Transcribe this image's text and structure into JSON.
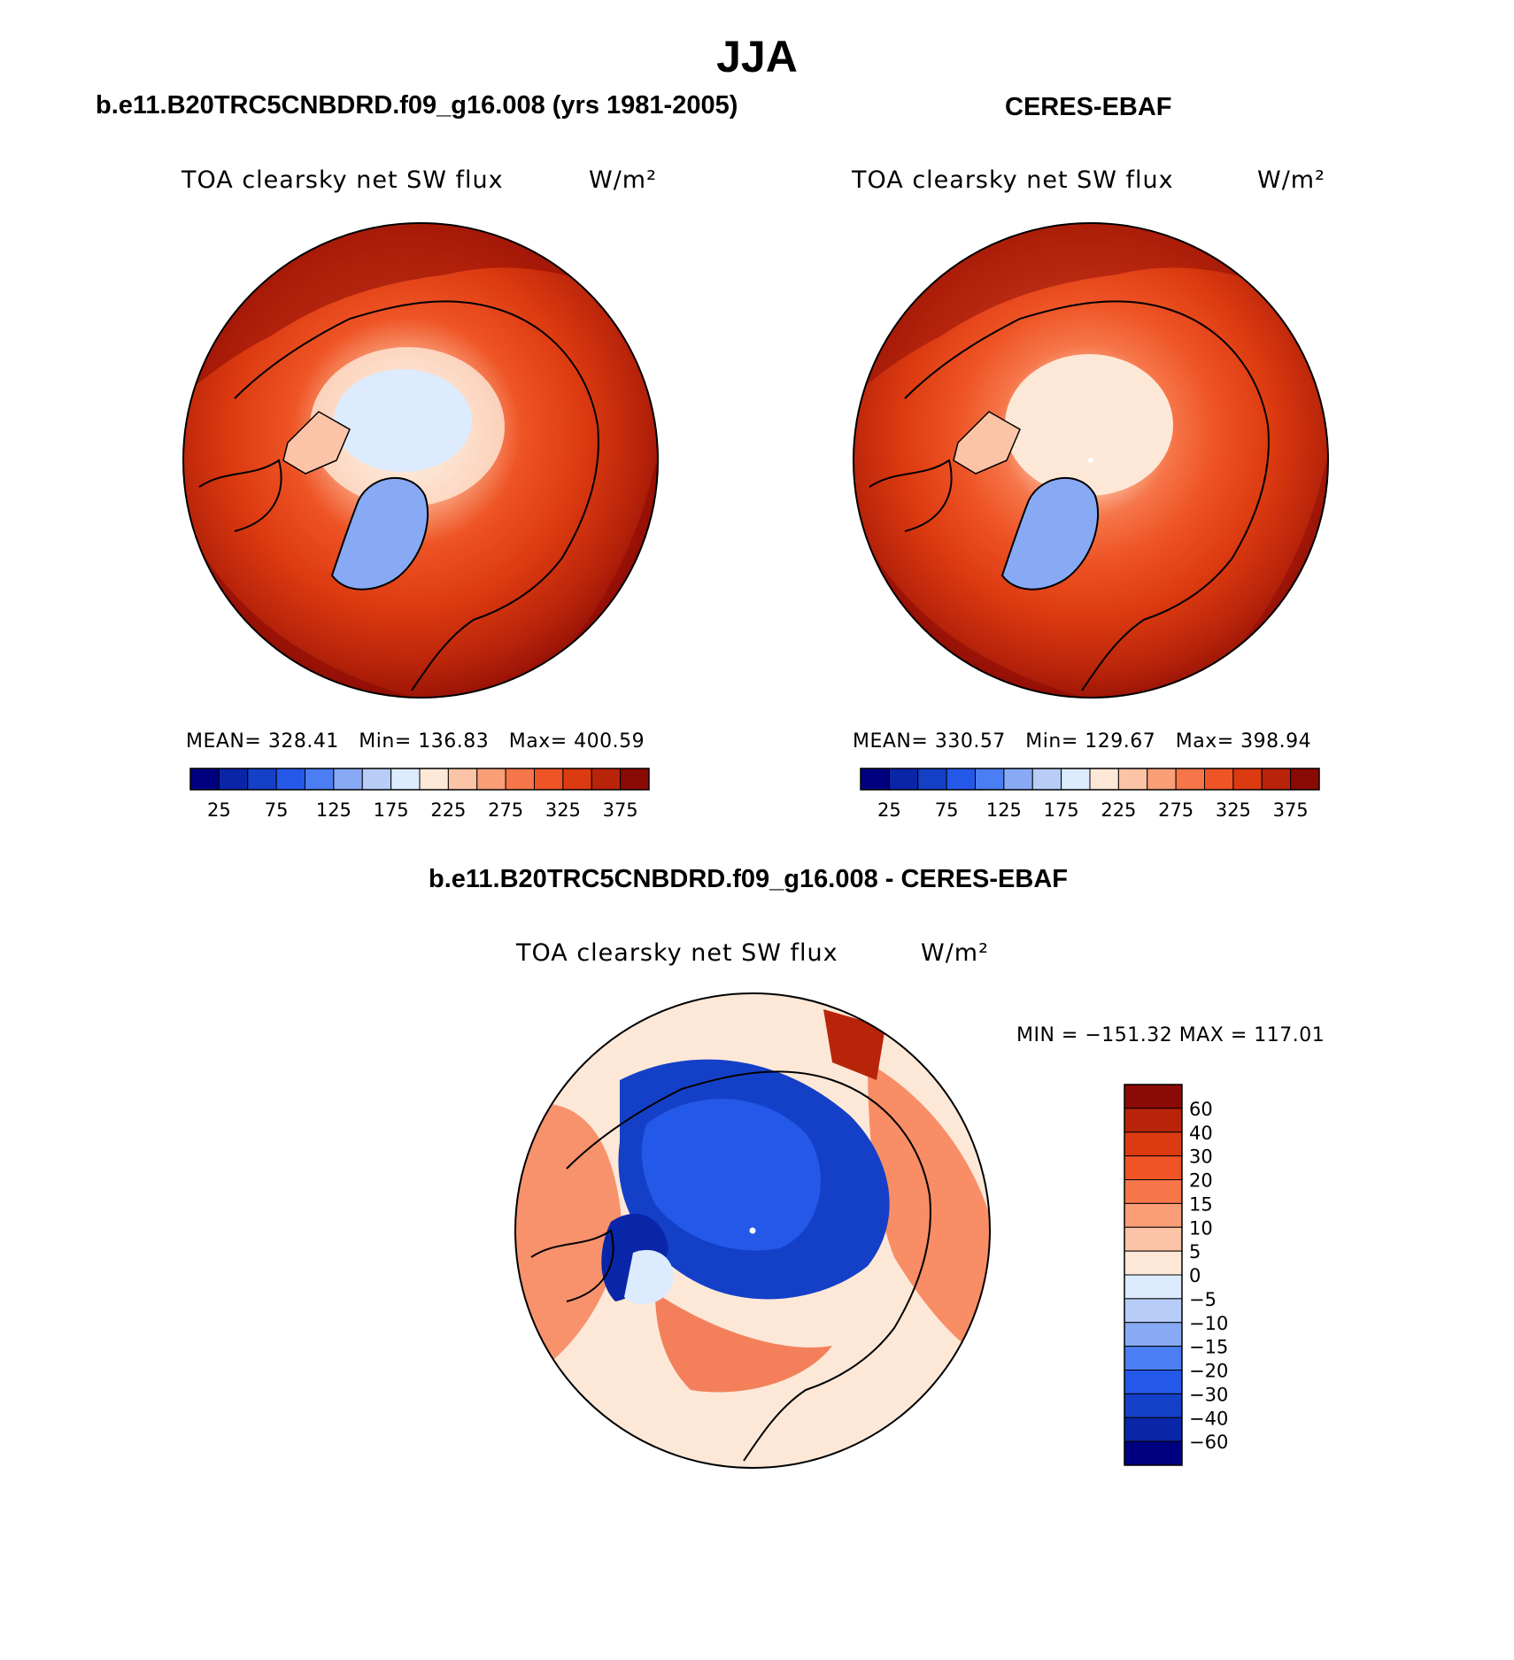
{
  "figure": {
    "title": "JJA"
  },
  "panels": [
    {
      "title": "b.e11.B20TRC5CNBDRD.f09_g16.008 (yrs 1981-2005)",
      "variable": "TOA clearsky net SW flux",
      "units": "W/m²",
      "stats": {
        "mean_label": "MEAN=",
        "mean": "328.41",
        "min_label": "Min=",
        "min": "136.83",
        "max_label": "Max=",
        "max": "400.59"
      }
    },
    {
      "title": "CERES-EBAF",
      "variable": "TOA clearsky net SW flux",
      "units": "W/m²",
      "stats": {
        "mean_label": "MEAN=",
        "mean": "330.57",
        "min_label": "Min=",
        "min": "129.67",
        "max_label": "Max=",
        "max": "398.94"
      }
    },
    {
      "title": "b.e11.B20TRC5CNBDRD.f09_g16.008 - CERES-EBAF",
      "variable": "TOA clearsky net SW flux",
      "units": "W/m²",
      "minmax": "MIN = −151.32 MAX = 117.01"
    }
  ],
  "colorbar_abs": {
    "tick_labels": [
      "25",
      "75",
      "125",
      "175",
      "225",
      "275",
      "325",
      "375"
    ],
    "colors": [
      "#000080",
      "#0a26a8",
      "#1440c8",
      "#2458e8",
      "#4a7ef2",
      "#88aaf4",
      "#b7cdf8",
      "#dcebfd",
      "#fde8d8",
      "#fcc4a6",
      "#fa9e78",
      "#f6764a",
      "#ee5425",
      "#dc3a10",
      "#b8240a",
      "#8a0a05"
    ]
  },
  "colorbar_diff": {
    "tick_labels": [
      "60",
      "40",
      "30",
      "20",
      "15",
      "10",
      "5",
      "0",
      "−5",
      "−10",
      "−15",
      "−20",
      "−30",
      "−40",
      "−60"
    ],
    "colors": [
      "#8a0a05",
      "#b8240a",
      "#dc3a10",
      "#ee5425",
      "#f6764a",
      "#fa9e78",
      "#fcc4a6",
      "#fde8d8",
      "#dcebfd",
      "#b7cdf8",
      "#88aaf4",
      "#4a7ef2",
      "#2458e8",
      "#1440c8",
      "#0a26a8",
      "#000080"
    ]
  }
}
